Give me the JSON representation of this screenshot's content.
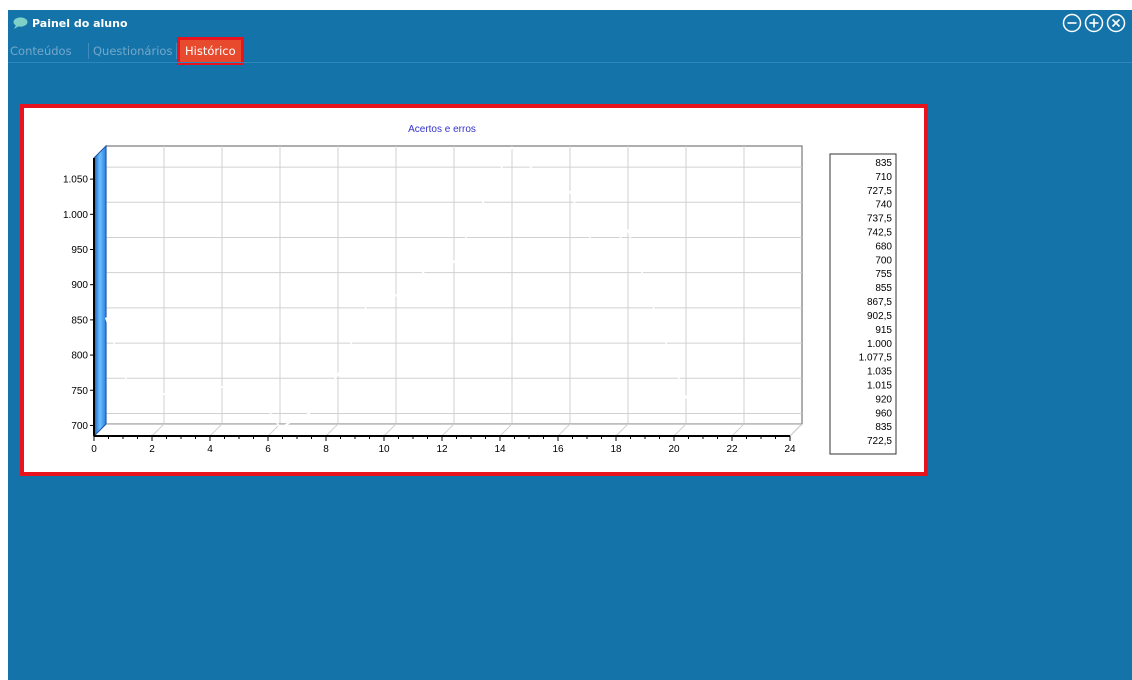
{
  "window": {
    "title": "Painel do aluno",
    "icon": "chat-bubble-icon",
    "controls": [
      {
        "name": "minimize-button",
        "icon": "minus-circle-icon"
      },
      {
        "name": "maximize-button",
        "icon": "plus-circle-icon"
      },
      {
        "name": "close-button",
        "icon": "x-circle-icon"
      }
    ]
  },
  "tabs": [
    {
      "label": "Conteúdos",
      "active": false
    },
    {
      "label": "Questionários",
      "active": false
    },
    {
      "label": "Histórico",
      "active": true
    }
  ],
  "colors": {
    "window_bg": "#1473a9",
    "active_tab": "#e84a2e",
    "highlight_border": "#e8131d",
    "chart_title": "#3333cc",
    "wall_blue": "#3e95e8"
  },
  "chart_data": {
    "type": "line",
    "title": "Acertos e erros",
    "xlabel": "",
    "ylabel": "",
    "xlim": [
      0,
      24
    ],
    "ylim": [
      685,
      1080
    ],
    "x_ticks": [
      "0",
      "2",
      "4",
      "6",
      "8",
      "10",
      "12",
      "14",
      "16",
      "18",
      "20",
      "22",
      "24"
    ],
    "y_ticks": [
      {
        "value": 700,
        "label": "700"
      },
      {
        "value": 750,
        "label": "750"
      },
      {
        "value": 800,
        "label": "800"
      },
      {
        "value": 850,
        "label": "850"
      },
      {
        "value": 900,
        "label": "900"
      },
      {
        "value": 950,
        "label": "950"
      },
      {
        "value": 1000,
        "label": "1.000"
      },
      {
        "value": 1050,
        "label": "1.050"
      }
    ],
    "grid": true,
    "view": "3d",
    "legend_position": "right",
    "legend_entries": [
      "835",
      "710",
      "727,5",
      "740",
      "737,5",
      "742,5",
      "680",
      "700",
      "755",
      "855",
      "867,5",
      "902,5",
      "915",
      "1.000",
      "1.077,5",
      "1.035",
      "1.015",
      "920",
      "960",
      "835",
      "722,5"
    ],
    "series": [
      {
        "color": "#ffffff",
        "x": [
          0,
          1,
          2,
          3,
          4,
          5,
          6,
          7,
          8,
          9,
          10,
          11,
          12,
          13,
          14,
          15,
          16,
          17,
          18,
          19,
          20
        ],
        "values": [
          835,
          710,
          727.5,
          740,
          737.5,
          742.5,
          680,
          700,
          755,
          855,
          867.5,
          902.5,
          915,
          1000,
          1077.5,
          1035,
          1015,
          920,
          960,
          835,
          722.5
        ]
      }
    ]
  }
}
